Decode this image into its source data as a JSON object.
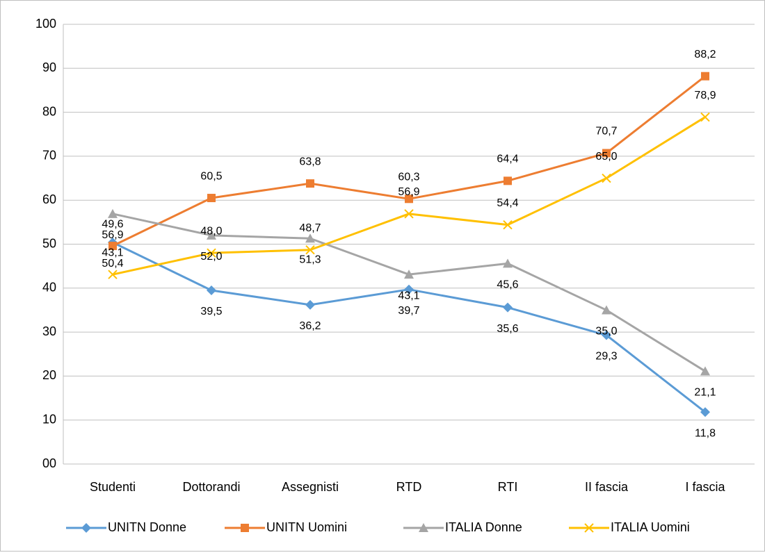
{
  "chart_data": {
    "type": "line",
    "categories": [
      "Studenti",
      "Dottorandi",
      "Assegnisti",
      "RTD",
      "RTI",
      "II fascia",
      "I fascia"
    ],
    "series": [
      {
        "name": "UNITN Donne",
        "color": "#5b9bd5",
        "marker": "diamond",
        "label_position": "below",
        "values": [
          50.4,
          39.5,
          36.2,
          39.7,
          35.6,
          29.3,
          11.8
        ],
        "value_labels": [
          "50,4",
          "39,5",
          "36,2",
          "39,7",
          "35,6",
          "29,3",
          "11,8"
        ]
      },
      {
        "name": "UNITN Uomini",
        "color": "#ed7d31",
        "marker": "square",
        "label_position": "above",
        "values": [
          49.6,
          60.5,
          63.8,
          60.3,
          64.4,
          70.7,
          88.2
        ],
        "value_labels": [
          "49,6",
          "60,5",
          "63,8",
          "60,3",
          "64,4",
          "70,7",
          "88,2"
        ]
      },
      {
        "name": "ITALIA Donne",
        "color": "#a5a5a5",
        "marker": "triangle",
        "label_position": "below",
        "values": [
          56.9,
          52.0,
          51.3,
          43.1,
          45.6,
          35.0,
          21.1
        ],
        "value_labels": [
          "56,9",
          "52,0",
          "51,3",
          "43,1",
          "45,6",
          "35,0",
          "21,1"
        ]
      },
      {
        "name": "ITALIA Uomini",
        "color": "#ffc000",
        "marker": "x",
        "label_position": "above",
        "values": [
          43.1,
          48.0,
          48.7,
          56.9,
          54.4,
          65.0,
          78.9
        ],
        "value_labels": [
          "43,1",
          "48,0",
          "48,7",
          "56,9",
          "54,4",
          "65,0",
          "78,9"
        ]
      }
    ],
    "ylim": [
      0,
      100
    ],
    "yticks": [
      {
        "value": 0,
        "label": "00"
      },
      10,
      20,
      30,
      40,
      50,
      60,
      70,
      80,
      90,
      100
    ],
    "grid": true,
    "legend": "bottom"
  }
}
